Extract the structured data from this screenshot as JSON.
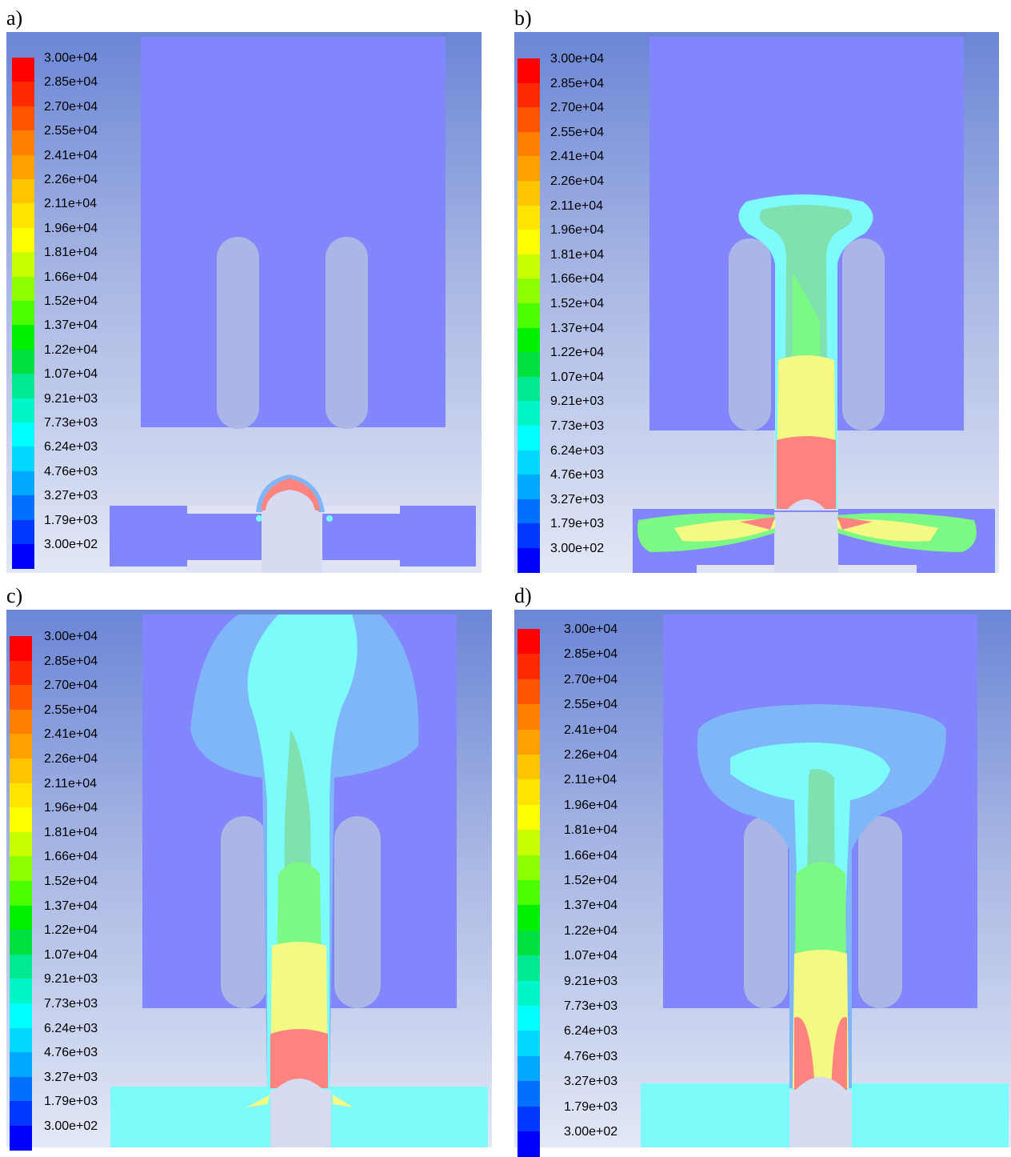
{
  "panels": [
    {
      "label": "a)"
    },
    {
      "label": "b)"
    },
    {
      "label": "c)"
    },
    {
      "label": "d)"
    }
  ],
  "legend": {
    "labels": [
      "3.00e+04",
      "2.85e+04",
      "2.70e+04",
      "2.55e+04",
      "2.41e+04",
      "2.26e+04",
      "2.11e+04",
      "1.96e+04",
      "1.81e+04",
      "1.66e+04",
      "1.52e+04",
      "1.37e+04",
      "1.22e+04",
      "1.07e+04",
      "9.21e+03",
      "7.73e+03",
      "6.24e+03",
      "4.76e+03",
      "3.27e+03",
      "1.79e+03",
      "3.00e+02"
    ],
    "colors": [
      "#ff0000",
      "#ff2a00",
      "#ff5500",
      "#ff7f00",
      "#ffa000",
      "#ffc400",
      "#ffe400",
      "#ffff00",
      "#c8ff00",
      "#8cff00",
      "#4cff00",
      "#00f000",
      "#00e040",
      "#00e890",
      "#00f5c8",
      "#00ffff",
      "#00d8ff",
      "#00a8ff",
      "#0070ff",
      "#0038ff",
      "#0000ff"
    ]
  },
  "colors": {
    "solid": "#8286fc",
    "cool_cyan": "#7dfafa",
    "cool_blue": "#7fb6f8",
    "mid_green": "#7cf884",
    "mid_yellow": "#f4f984",
    "hot_red": "#ff8480",
    "background_top": "#6b86d6",
    "background_bottom": "#e3e8f6"
  }
}
